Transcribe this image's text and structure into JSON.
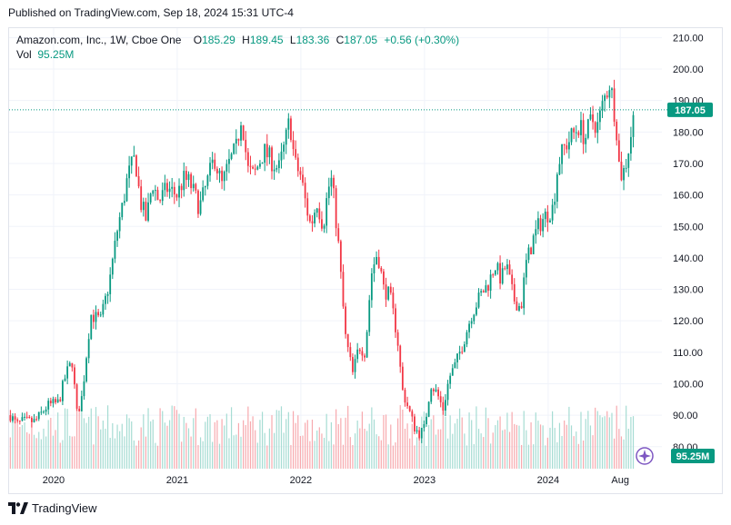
{
  "header": {
    "published": "Published on TradingView.com, Sep 18, 2024 15:31 UTC-4"
  },
  "legend": {
    "symbol": "Amazon.com, Inc., 1W, Cboe One",
    "open_label": "O",
    "open_value": "185.29",
    "high_label": "H",
    "high_value": "189.45",
    "low_label": "L",
    "low_value": "183.36",
    "close_label": "C",
    "close_value": "187.05",
    "change": "+0.56 (+0.30%)",
    "vol_label": "Vol",
    "vol_value": "95.25M"
  },
  "price_badge": "187.05",
  "volume_badge": "95.25M",
  "footer": {
    "brand": "TradingView"
  },
  "colors": {
    "up": "#089981",
    "down": "#f23645",
    "up_vol": "#a6dcd3",
    "down_vol": "#f7a9ae",
    "grid": "#f0f3fa",
    "badge": "#089981"
  },
  "chart_data": {
    "type": "candlestick",
    "interval": "1W",
    "y_axis_ticks": [
      80,
      90,
      100,
      110,
      120,
      130,
      140,
      150,
      160,
      170,
      180,
      190,
      200,
      210
    ],
    "y_tick_labels": [
      "80.00",
      "90.00",
      "100.00",
      "110.00",
      "120.00",
      "130.00",
      "140.00",
      "150.00",
      "160.00",
      "170.00",
      "180.00",
      "190.00",
      "200.00",
      "210.00"
    ],
    "ylim": [
      73,
      213
    ],
    "x_tick_labels": [
      "2020",
      "2021",
      "2022",
      "2023",
      "2024",
      "Aug"
    ],
    "x_tick_times": [
      2020.0,
      2021.0,
      2022.0,
      2023.0,
      2024.0,
      2024.583
    ],
    "xlim": [
      2019.64,
      2024.92
    ],
    "last_price": 187.05,
    "close_path": [
      [
        2019.65,
        90
      ],
      [
        2019.7,
        87
      ],
      [
        2019.75,
        88
      ],
      [
        2019.85,
        88
      ],
      [
        2019.95,
        93
      ],
      [
        2020.04,
        94
      ],
      [
        2020.1,
        103
      ],
      [
        2020.15,
        107
      ],
      [
        2020.19,
        90
      ],
      [
        2020.23,
        96
      ],
      [
        2020.3,
        122
      ],
      [
        2020.38,
        120
      ],
      [
        2020.45,
        132
      ],
      [
        2020.52,
        150
      ],
      [
        2020.56,
        157
      ],
      [
        2020.6,
        166
      ],
      [
        2020.66,
        172
      ],
      [
        2020.7,
        158
      ],
      [
        2020.75,
        152
      ],
      [
        2020.8,
        164
      ],
      [
        2020.85,
        158
      ],
      [
        2020.92,
        162
      ],
      [
        2021.0,
        160
      ],
      [
        2021.05,
        165
      ],
      [
        2021.1,
        164
      ],
      [
        2021.18,
        156
      ],
      [
        2021.25,
        165
      ],
      [
        2021.3,
        172
      ],
      [
        2021.36,
        163
      ],
      [
        2021.42,
        170
      ],
      [
        2021.48,
        175
      ],
      [
        2021.52,
        186
      ],
      [
        2021.57,
        168
      ],
      [
        2021.62,
        166
      ],
      [
        2021.7,
        174
      ],
      [
        2021.78,
        170
      ],
      [
        2021.82,
        168
      ],
      [
        2021.87,
        176
      ],
      [
        2021.91,
        184
      ],
      [
        2021.95,
        170
      ],
      [
        2022.0,
        166
      ],
      [
        2022.04,
        157
      ],
      [
        2022.08,
        150
      ],
      [
        2022.13,
        158
      ],
      [
        2022.18,
        150
      ],
      [
        2022.22,
        162
      ],
      [
        2022.25,
        165
      ],
      [
        2022.3,
        146
      ],
      [
        2022.36,
        115
      ],
      [
        2022.42,
        103
      ],
      [
        2022.47,
        112
      ],
      [
        2022.52,
        110
      ],
      [
        2022.57,
        135
      ],
      [
        2022.62,
        142
      ],
      [
        2022.67,
        130
      ],
      [
        2022.72,
        128
      ],
      [
        2022.78,
        115
      ],
      [
        2022.82,
        98
      ],
      [
        2022.87,
        92
      ],
      [
        2022.92,
        86
      ],
      [
        2022.96,
        84
      ],
      [
        2023.0,
        86
      ],
      [
        2023.05,
        100
      ],
      [
        2023.1,
        97
      ],
      [
        2023.15,
        92
      ],
      [
        2023.2,
        102
      ],
      [
        2023.25,
        106
      ],
      [
        2023.32,
        114
      ],
      [
        2023.38,
        122
      ],
      [
        2023.45,
        128
      ],
      [
        2023.52,
        132
      ],
      [
        2023.57,
        138
      ],
      [
        2023.62,
        133
      ],
      [
        2023.66,
        138
      ],
      [
        2023.72,
        127
      ],
      [
        2023.78,
        124
      ],
      [
        2023.82,
        138
      ],
      [
        2023.88,
        146
      ],
      [
        2023.92,
        150
      ],
      [
        2023.97,
        153
      ],
      [
        2024.04,
        156
      ],
      [
        2024.08,
        170
      ],
      [
        2024.13,
        175
      ],
      [
        2024.18,
        178
      ],
      [
        2024.25,
        182
      ],
      [
        2024.3,
        178
      ],
      [
        2024.35,
        184
      ],
      [
        2024.4,
        182
      ],
      [
        2024.45,
        190
      ],
      [
        2024.5,
        196
      ],
      [
        2024.55,
        183
      ],
      [
        2024.58,
        166
      ],
      [
        2024.62,
        168
      ],
      [
        2024.66,
        177
      ],
      [
        2024.7,
        187
      ]
    ]
  }
}
